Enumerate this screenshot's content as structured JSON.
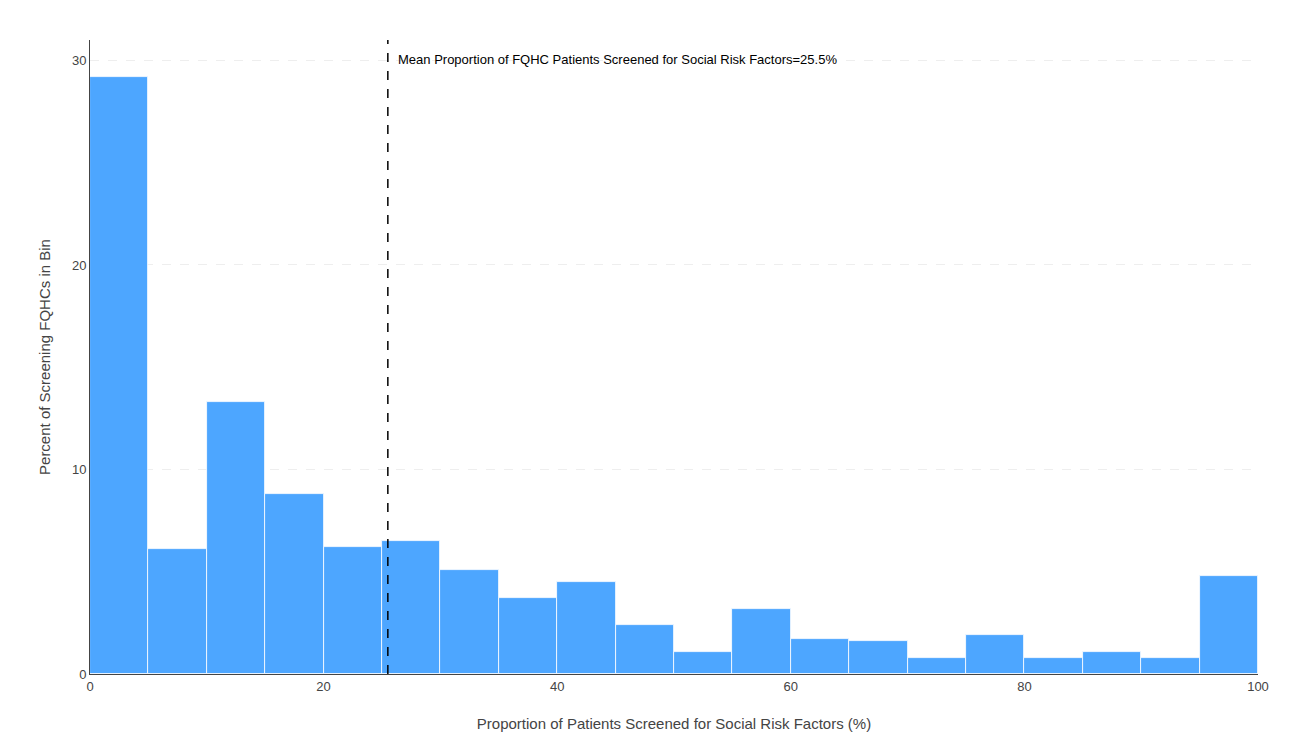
{
  "chart_data": {
    "type": "histogram",
    "xlabel": "Proportion of Patients Screened for Social Risk Factors (%)",
    "ylabel": "Percent of Screening FQHCs in Bin",
    "bins": [
      0,
      5,
      10,
      15,
      20,
      25,
      30,
      35,
      40,
      45,
      50,
      55,
      60,
      65,
      70,
      75,
      80,
      85,
      90,
      95,
      100
    ],
    "values": [
      29.2,
      6.1,
      13.3,
      8.8,
      6.2,
      6.5,
      5.1,
      3.7,
      4.5,
      2.4,
      1.1,
      3.2,
      1.7,
      1.6,
      0.8,
      1.9,
      0.8,
      1.1,
      0.8,
      4.8
    ],
    "color": "#4DA6FF",
    "xlim": [
      0,
      100
    ],
    "xticks": [
      0,
      20,
      40,
      60,
      80,
      100
    ],
    "ylim": [
      0,
      31
    ],
    "yticks": [
      0,
      10,
      20,
      30
    ],
    "grid": true,
    "annotations": [
      {
        "x": 25.5,
        "text": "Mean Proportion of FQHC Patients Screened for Social Risk Factors=25.5%",
        "line_style": "dashed"
      }
    ]
  }
}
